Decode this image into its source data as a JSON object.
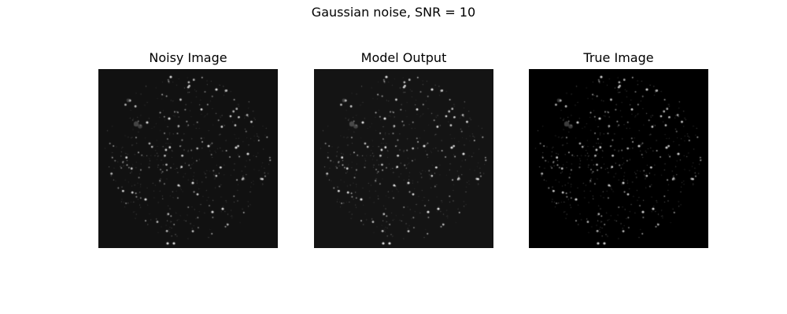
{
  "figure": {
    "title": "Gaussian noise, SNR = 10"
  },
  "panels": [
    {
      "title": "Noisy Image",
      "background": "#111111",
      "star_gain": 0.85
    },
    {
      "title": "Model Output",
      "background": "#141414",
      "star_gain": 0.9
    },
    {
      "title": "True Image",
      "background": "#000000",
      "star_gain": 0.8
    }
  ]
}
